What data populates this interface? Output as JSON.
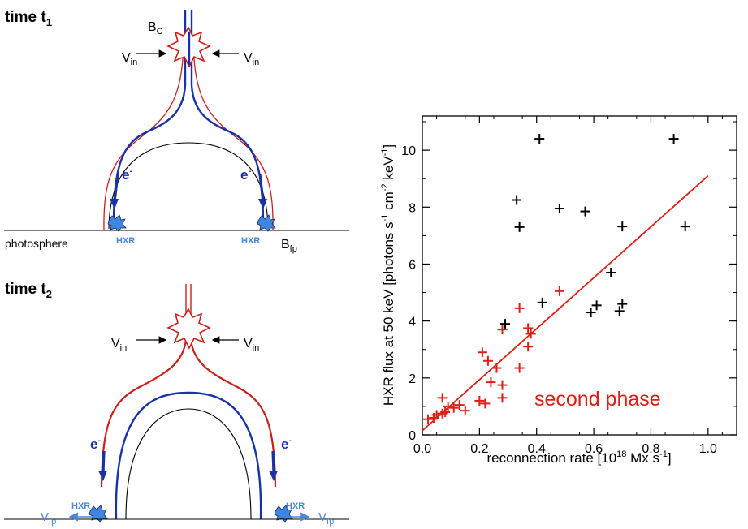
{
  "diagram": {
    "panel1": {
      "title": "time t",
      "title_sub": "1",
      "bc": "B",
      "bc_sub": "C",
      "vin": "V",
      "vin_sub": "in",
      "electron": "e",
      "electron_sup": "-",
      "hxr": "HXR",
      "photosphere": "photosphere",
      "bfp": "B",
      "bfp_sub": "fp"
    },
    "panel2": {
      "title": "time t",
      "title_sub": "2",
      "vin": "V",
      "vin_sub": "in",
      "electron": "e",
      "electron_sup": "-",
      "hxr": "HXR",
      "vfp": "V",
      "vfp_sub": "fp"
    },
    "colors": {
      "red": "#cc1f1a",
      "blue": "#1a32a8",
      "light_blue": "#4a86d9",
      "black": "#000000"
    }
  },
  "chart_data": {
    "type": "scatter",
    "xlabel": "reconnection rate [10",
    "xlabel_sup": "18",
    "xlabel_tail": " Mx s",
    "xlabel_sup2": "-1",
    "xlabel_end": "]",
    "ylabel": "HXR flux at 50 keV [photons s",
    "ylabel_sup1": "-1",
    "ylabel_mid1": " cm",
    "ylabel_sup2": "-2",
    "ylabel_mid2": " keV",
    "ylabel_sup3": "-1",
    "ylabel_end": "]",
    "xlim": [
      0,
      1.1
    ],
    "ylim": [
      0,
      11.2
    ],
    "x_ticks": [
      "0.0",
      "0.2",
      "0.4",
      "0.6",
      "0.8",
      "1.0"
    ],
    "x_tick_values": [
      0,
      0.2,
      0.4,
      0.6,
      0.8,
      1.0
    ],
    "y_ticks": [
      "0",
      "2",
      "4",
      "6",
      "8",
      "10"
    ],
    "y_tick_values": [
      0,
      2,
      4,
      6,
      8,
      10
    ],
    "annotation": "second phase",
    "series": [
      {
        "color": "#000000",
        "points": [
          [
            0.41,
            10.4
          ],
          [
            0.88,
            10.4
          ],
          [
            0.33,
            8.25
          ],
          [
            0.48,
            7.95
          ],
          [
            0.57,
            7.85
          ],
          [
            0.34,
            7.3
          ],
          [
            0.7,
            7.32
          ],
          [
            0.92,
            7.32
          ],
          [
            0.66,
            5.7
          ],
          [
            0.42,
            4.65
          ],
          [
            0.61,
            4.55
          ],
          [
            0.7,
            4.6
          ],
          [
            0.59,
            4.3
          ],
          [
            0.69,
            4.35
          ],
          [
            0.29,
            3.9
          ]
        ]
      },
      {
        "color": "#dd1e14",
        "points": [
          [
            0.48,
            5.05
          ],
          [
            0.34,
            4.45
          ],
          [
            0.37,
            3.75
          ],
          [
            0.38,
            3.55
          ],
          [
            0.28,
            3.7
          ],
          [
            0.37,
            3.1
          ],
          [
            0.21,
            2.9
          ],
          [
            0.23,
            2.6
          ],
          [
            0.34,
            2.35
          ],
          [
            0.26,
            2.35
          ],
          [
            0.24,
            1.85
          ],
          [
            0.28,
            1.75
          ],
          [
            0.2,
            1.2
          ],
          [
            0.22,
            1.1
          ],
          [
            0.28,
            1.3
          ],
          [
            0.15,
            0.85
          ],
          [
            0.13,
            1.05
          ],
          [
            0.11,
            0.95
          ],
          [
            0.09,
            1.0
          ],
          [
            0.07,
            1.3
          ],
          [
            0.08,
            0.8
          ],
          [
            0.07,
            0.75
          ],
          [
            0.05,
            0.7
          ],
          [
            0.04,
            0.6
          ],
          [
            0.02,
            0.55
          ]
        ]
      }
    ],
    "fit_line": {
      "color": "#dd1e14",
      "x": [
        0.0,
        1.0
      ],
      "y": [
        0.15,
        9.1
      ]
    }
  }
}
